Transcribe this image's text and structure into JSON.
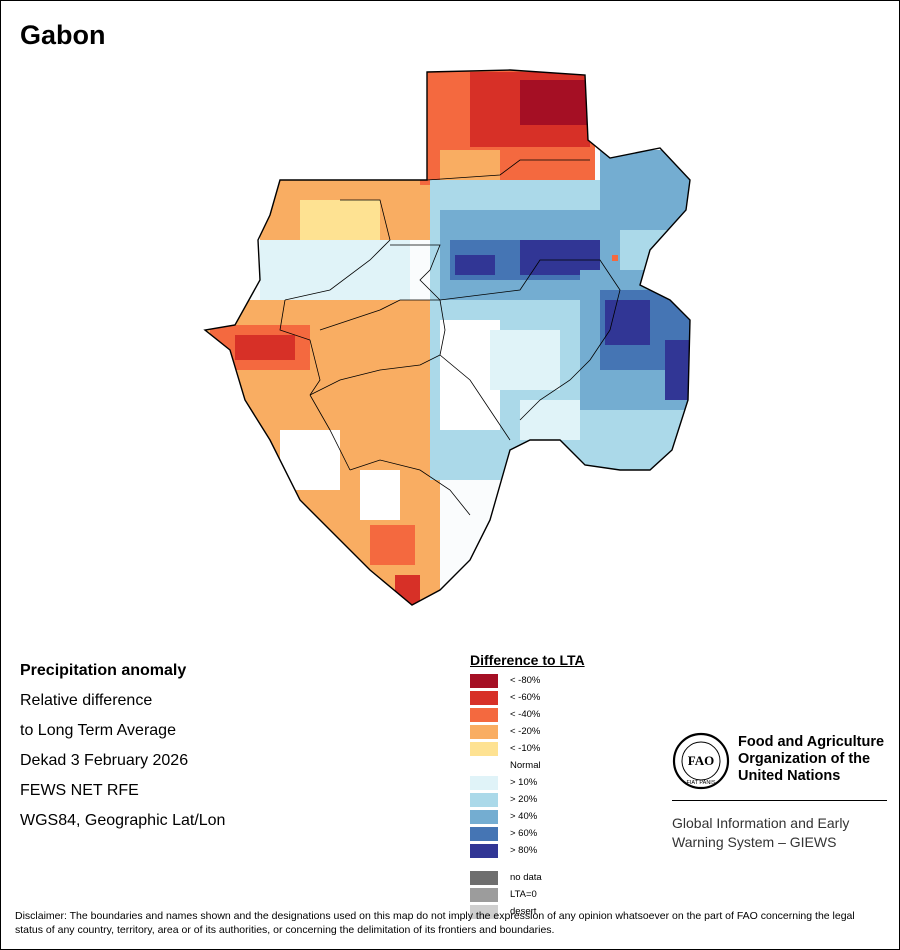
{
  "map": {
    "title": "Gabon",
    "info_lines": [
      "Precipitation anomaly",
      "Relative difference",
      "to Long Term Average",
      "Dekad 3 February 2026",
      "FEWS NET RFE",
      "WGS84, Geographic Lat/Lon"
    ]
  },
  "legend": {
    "title": "Difference to LTA",
    "classes": [
      {
        "label": "< -80%",
        "color": "#a50f24"
      },
      {
        "label": "< -60%",
        "color": "#d73027"
      },
      {
        "label": "< -40%",
        "color": "#f4693f"
      },
      {
        "label": "< -20%",
        "color": "#f9ad62"
      },
      {
        "label": "< -10%",
        "color": "#fee292"
      },
      {
        "label": "Normal",
        "color": "#ffffff"
      },
      {
        "label": "> 10%",
        "color": "#e0f3f8"
      },
      {
        "label": "> 20%",
        "color": "#abd9e9"
      },
      {
        "label": "> 40%",
        "color": "#74add1"
      },
      {
        "label": "> 60%",
        "color": "#4575b4"
      },
      {
        "label": "> 80%",
        "color": "#313695"
      }
    ],
    "extra": [
      {
        "label": "no data",
        "color": "#6e6e6e"
      },
      {
        "label": "LTA=0",
        "color": "#9c9c9c"
      },
      {
        "label": "desert",
        "color": "#cfcfcf"
      }
    ]
  },
  "organization": {
    "logo_text": "FAO",
    "logo_motto": "FIAT PANIS",
    "name": "Food and Agriculture Organization of the United Nations",
    "system": "Global Information and Early Warning System – GIEWS"
  },
  "disclaimer": "Disclaimer: The boundaries and names shown and the designations used on this map do not imply the expression of any opinion whatsoever on the part of FAO concerning the legal status of any country, territory, area or of its authorities, or concerning the delimitation of its frontiers and boundaries."
}
